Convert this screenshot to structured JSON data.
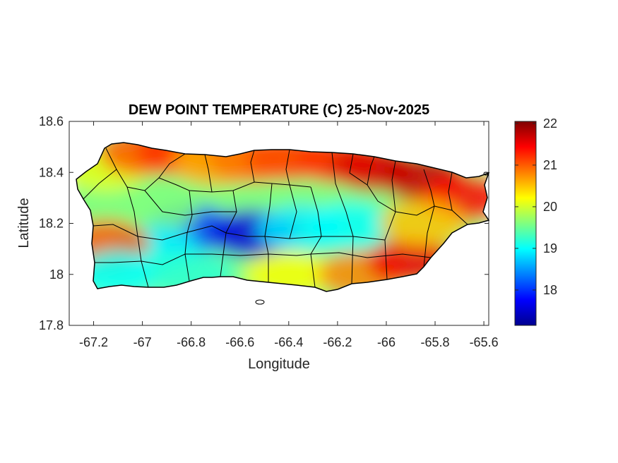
{
  "chart_data": {
    "type": "heatmap",
    "title": "DEW POINT TEMPERATURE (C) 25-Nov-2025",
    "xlabel": "Longitude",
    "ylabel": "Latitude",
    "xlim": [
      -67.3,
      -65.58
    ],
    "ylim": [
      17.8,
      18.6
    ],
    "xticks": [
      -67.2,
      -67,
      -66.8,
      -66.6,
      -66.4,
      -66.2,
      -66,
      -65.8,
      -65.6
    ],
    "xtick_labels": [
      "-67.2",
      "-67",
      "-66.8",
      "-66.6",
      "-66.4",
      "-66.2",
      "-66",
      "-65.8",
      "-65.6"
    ],
    "yticks": [
      17.8,
      18,
      18.2,
      18.4,
      18.6
    ],
    "ytick_labels": [
      "17.8",
      "18",
      "18.2",
      "18.4",
      "18.6"
    ],
    "colorbar": {
      "colormap": "jet",
      "range": [
        17.15,
        22.05
      ],
      "ticks": [
        18,
        19,
        20,
        21,
        22
      ],
      "tick_labels": [
        "18",
        "19",
        "20",
        "21",
        "22"
      ]
    },
    "grid": false,
    "field_samples": [
      {
        "lon": -67.15,
        "lat": 18.42,
        "value": 20.1
      },
      {
        "lon": -67.0,
        "lat": 18.48,
        "value": 21.0
      },
      {
        "lon": -66.85,
        "lat": 18.48,
        "value": 21.2
      },
      {
        "lon": -66.7,
        "lat": 18.44,
        "value": 20.6
      },
      {
        "lon": -66.55,
        "lat": 18.45,
        "value": 20.9
      },
      {
        "lon": -66.4,
        "lat": 18.46,
        "value": 21.1
      },
      {
        "lon": -66.2,
        "lat": 18.45,
        "value": 21.2
      },
      {
        "lon": -66.05,
        "lat": 18.42,
        "value": 21.6
      },
      {
        "lon": -65.85,
        "lat": 18.38,
        "value": 21.7
      },
      {
        "lon": -65.68,
        "lat": 18.3,
        "value": 21.4
      },
      {
        "lon": -66.8,
        "lat": 18.18,
        "value": 18.1
      },
      {
        "lon": -66.55,
        "lat": 18.16,
        "value": 17.6
      },
      {
        "lon": -66.35,
        "lat": 18.18,
        "value": 18.9
      },
      {
        "lon": -66.15,
        "lat": 18.19,
        "value": 19.0
      },
      {
        "lon": -66.95,
        "lat": 18.26,
        "value": 19.6
      },
      {
        "lon": -66.95,
        "lat": 18.1,
        "value": 19.0
      },
      {
        "lon": -67.15,
        "lat": 18.12,
        "value": 21.0
      },
      {
        "lon": -67.1,
        "lat": 18.0,
        "value": 19.0
      },
      {
        "lon": -66.8,
        "lat": 18.0,
        "value": 19.2
      },
      {
        "lon": -66.4,
        "lat": 18.0,
        "value": 20.2
      },
      {
        "lon": -66.1,
        "lat": 18.0,
        "value": 20.8
      },
      {
        "lon": -65.9,
        "lat": 18.05,
        "value": 21.5
      },
      {
        "lon": -65.85,
        "lat": 18.2,
        "value": 20.5
      }
    ]
  }
}
